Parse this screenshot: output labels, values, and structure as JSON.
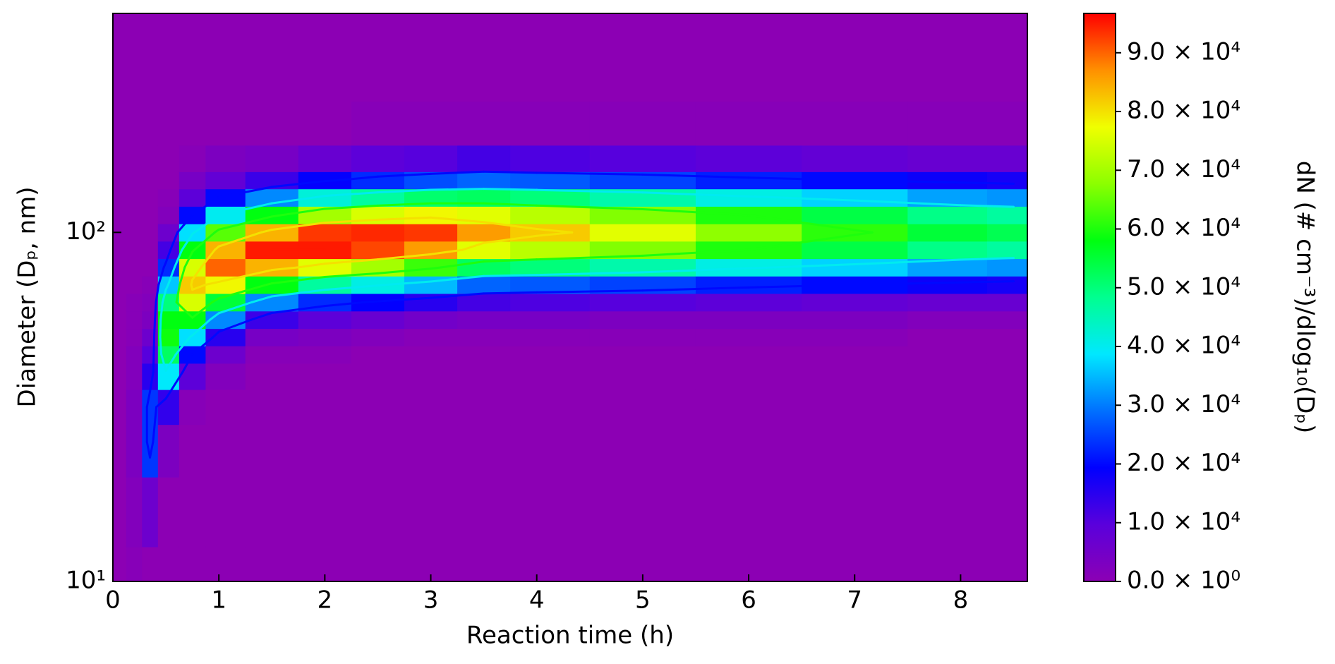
{
  "chart_data": {
    "type": "heatmap",
    "xlabel": "Reaction time (h)",
    "ylabel": "Diameter (Dₚ, nm)",
    "x": [
      0.2,
      0.35,
      0.5,
      0.75,
      1,
      1.5,
      2,
      2.5,
      3,
      3.5,
      4,
      5,
      6,
      7,
      8,
      8.5
    ],
    "y": [
      10,
      15.8,
      25.1,
      31.6,
      39.8,
      44.7,
      50.1,
      56.2,
      63.1,
      70.8,
      79.4,
      89.1,
      100,
      112,
      126,
      141,
      158,
      200,
      282,
      398
    ],
    "z": [
      [
        1000,
        2000,
        3000,
        3000,
        2000,
        2000,
        1000,
        1000,
        1000,
        0,
        0,
        0,
        0,
        0,
        0,
        0,
        0,
        0,
        0,
        0
      ],
      [
        0,
        6000,
        24000,
        24000,
        15000,
        10000,
        6000,
        3000,
        2000,
        1000,
        0,
        0,
        0,
        0,
        0,
        0,
        0,
        0,
        0,
        0
      ],
      [
        0,
        0,
        3000,
        14000,
        39000,
        52000,
        59000,
        58000,
        50000,
        36000,
        23000,
        12000,
        6000,
        2000,
        1000,
        0,
        0,
        0,
        0,
        0
      ],
      [
        0,
        0,
        0,
        1000,
        9000,
        20000,
        38000,
        58000,
        75000,
        82000,
        75000,
        58000,
        38000,
        20000,
        9000,
        4000,
        1000,
        0,
        0,
        0
      ],
      [
        0,
        0,
        0,
        0,
        2000,
        6000,
        15000,
        31000,
        55000,
        78000,
        90000,
        84000,
        64000,
        40000,
        20000,
        8000,
        3000,
        0,
        0,
        0
      ],
      [
        0,
        0,
        0,
        0,
        0,
        1000,
        4000,
        13000,
        31000,
        58000,
        84000,
        95000,
        84000,
        58000,
        31000,
        13000,
        4000,
        0,
        0,
        0
      ],
      [
        0,
        0,
        0,
        0,
        0,
        1000,
        3000,
        9000,
        23000,
        47000,
        76000,
        95000,
        93000,
        70000,
        42000,
        19000,
        7000,
        0,
        0,
        0
      ],
      [
        0,
        0,
        0,
        0,
        0,
        0,
        2000,
        7000,
        19000,
        41000,
        70000,
        92000,
        94000,
        75000,
        47000,
        23000,
        9000,
        1000,
        0,
        0
      ],
      [
        0,
        0,
        0,
        0,
        0,
        0,
        1000,
        5000,
        15000,
        35000,
        62000,
        86000,
        93000,
        78000,
        51000,
        26000,
        10000,
        1000,
        0,
        0
      ],
      [
        0,
        0,
        0,
        0,
        0,
        0,
        1000,
        4000,
        12000,
        28000,
        52000,
        76000,
        86000,
        76000,
        52000,
        28000,
        12000,
        1000,
        0,
        0
      ],
      [
        0,
        0,
        0,
        0,
        0,
        0,
        1000,
        4000,
        11000,
        27000,
        50000,
        72000,
        82000,
        72000,
        50000,
        27000,
        11000,
        1000,
        0,
        0
      ],
      [
        0,
        0,
        0,
        0,
        0,
        0,
        1000,
        3000,
        10000,
        25000,
        46000,
        67000,
        76000,
        67000,
        46000,
        25000,
        10000,
        1000,
        0,
        0
      ],
      [
        0,
        0,
        0,
        0,
        0,
        0,
        1000,
        3000,
        9000,
        22000,
        41000,
        60000,
        68000,
        60000,
        41000,
        22000,
        9000,
        1000,
        0,
        0
      ],
      [
        0,
        0,
        0,
        0,
        0,
        0,
        1000,
        3000,
        8000,
        20000,
        37000,
        54000,
        61000,
        54000,
        37000,
        20000,
        8000,
        1000,
        0,
        0
      ],
      [
        0,
        0,
        0,
        0,
        0,
        0,
        0,
        2000,
        7000,
        18000,
        33000,
        49000,
        55000,
        49000,
        33000,
        18000,
        7000,
        1000,
        0,
        0
      ],
      [
        0,
        0,
        0,
        0,
        0,
        0,
        0,
        2000,
        7000,
        17000,
        32000,
        47000,
        53000,
        47000,
        32000,
        17000,
        7000,
        1000,
        0,
        0
      ]
    ],
    "xlim": [
      0,
      8.63
    ],
    "ylim": [
      10,
      424
    ],
    "yscale": "log",
    "xticks": [
      0,
      1,
      2,
      3,
      4,
      5,
      6,
      7,
      8
    ],
    "yticks": [
      {
        "value": 10,
        "label": "10¹"
      },
      {
        "value": 100,
        "label": "10²"
      }
    ],
    "contour_levels": [
      20000,
      40000,
      60000,
      80000,
      95000
    ],
    "colorbar": {
      "label": "dN (# cm⁻³)/dlog₁₀(Dₚ)",
      "lim": [
        0,
        96700
      ],
      "colors": [
        "#8c00b4",
        "#5a00dc",
        "#0000ff",
        "#0070ff",
        "#00e8ff",
        "#00ff90",
        "#00ff10",
        "#8cff00",
        "#f0ff00",
        "#ff9000",
        "#ff0000"
      ],
      "ticks": [
        {
          "value": 0,
          "label": "0.0 × 10⁰"
        },
        {
          "value": 10000,
          "label": "1.0 × 10⁴"
        },
        {
          "value": 20000,
          "label": "2.0 × 10⁴"
        },
        {
          "value": 30000,
          "label": "3.0 × 10⁴"
        },
        {
          "value": 40000,
          "label": "4.0 × 10⁴"
        },
        {
          "value": 50000,
          "label": "5.0 × 10⁴"
        },
        {
          "value": 60000,
          "label": "6.0 × 10⁴"
        },
        {
          "value": 70000,
          "label": "7.0 × 10⁴"
        },
        {
          "value": 80000,
          "label": "8.0 × 10⁴"
        },
        {
          "value": 90000,
          "label": "9.0 × 10⁴"
        }
      ]
    }
  }
}
